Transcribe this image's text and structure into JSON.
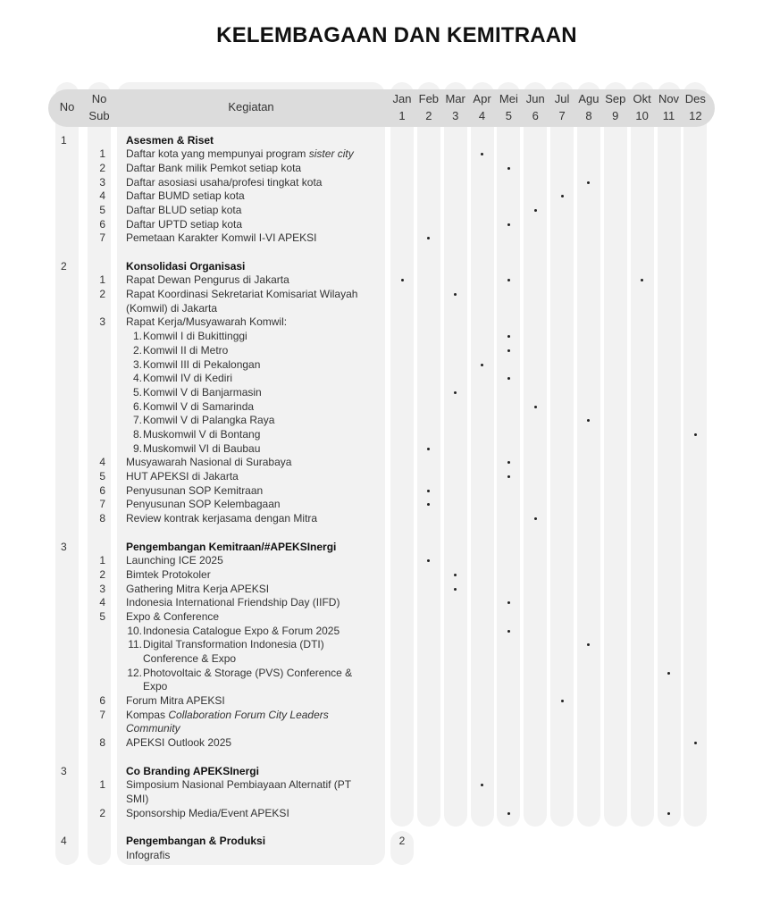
{
  "title": "KELEMBAGAAN DAN KEMITRAAN",
  "header": {
    "no": "No",
    "no_sub_1": "No",
    "no_sub_2": "Sub",
    "kegiatan": "Kegiatan",
    "months": [
      [
        "Jan",
        "1"
      ],
      [
        "Feb",
        "2"
      ],
      [
        "Mar",
        "3"
      ],
      [
        "Apr",
        "4"
      ],
      [
        "Mei",
        "5"
      ],
      [
        "Jun",
        "6"
      ],
      [
        "Jul",
        "7"
      ],
      [
        "Agu",
        "8"
      ],
      [
        "Sep",
        "9"
      ],
      [
        "Okt",
        "10"
      ],
      [
        "Nov",
        "11"
      ],
      [
        "Des",
        "12"
      ]
    ]
  },
  "rows": [
    {
      "no": "1",
      "parts": [
        {
          "t": "Asesmen & Riset"
        }
      ],
      "bold": true
    },
    {
      "sub": "1",
      "parts": [
        {
          "t": "Daftar kota yang mempunyai program "
        },
        {
          "t": "sister city",
          "i": true
        }
      ],
      "m": [
        4
      ]
    },
    {
      "sub": "2",
      "parts": [
        {
          "t": "Daftar Bank milik Pemkot setiap kota"
        }
      ],
      "m": [
        5
      ]
    },
    {
      "sub": "3",
      "parts": [
        {
          "t": "Daftar asosiasi usaha/profesi tingkat kota"
        }
      ],
      "m": [
        8
      ]
    },
    {
      "sub": "4",
      "parts": [
        {
          "t": "Daftar BUMD setiap kota"
        }
      ],
      "m": [
        7
      ]
    },
    {
      "sub": "5",
      "parts": [
        {
          "t": "Daftar BLUD setiap kota"
        }
      ],
      "m": [
        6
      ]
    },
    {
      "sub": "6",
      "parts": [
        {
          "t": "Daftar UPTD setiap kota"
        }
      ],
      "m": [
        5
      ]
    },
    {
      "sub": "7",
      "parts": [
        {
          "t": "Pemetaan Karakter Komwil I-VI APEKSI"
        }
      ],
      "m": [
        2
      ]
    },
    {},
    {
      "no": "2",
      "parts": [
        {
          "t": "Konsolidasi Organisasi"
        }
      ],
      "bold": true
    },
    {
      "sub": "1",
      "parts": [
        {
          "t": "Rapat Dewan Pengurus di Jakarta"
        }
      ],
      "m": [
        1,
        5,
        10
      ]
    },
    {
      "sub": "2",
      "parts": [
        {
          "t": "Rapat Koordinasi Sekretariat Komisariat Wilayah"
        }
      ],
      "m": [
        3
      ]
    },
    {
      "parts": [
        {
          "t": "(Komwil) di Jakarta"
        }
      ]
    },
    {
      "sub": "3",
      "parts": [
        {
          "t": "Rapat Kerja/Musyawarah Komwil:"
        }
      ]
    },
    {
      "num": "1.",
      "parts": [
        {
          "t": "Komwil I di Bukittinggi"
        }
      ],
      "m": [
        5
      ]
    },
    {
      "num": "2.",
      "parts": [
        {
          "t": "Komwil II di Metro"
        }
      ],
      "m": [
        5
      ]
    },
    {
      "num": "3.",
      "parts": [
        {
          "t": "Komwil III di Pekalongan"
        }
      ],
      "m": [
        4
      ]
    },
    {
      "num": "4.",
      "parts": [
        {
          "t": "Komwil IV di Kediri"
        }
      ],
      "m": [
        5
      ]
    },
    {
      "num": "5.",
      "parts": [
        {
          "t": "Komwil V di Banjarmasin"
        }
      ],
      "m": [
        3
      ]
    },
    {
      "num": "6.",
      "parts": [
        {
          "t": "Komwil V di Samarinda"
        }
      ],
      "m": [
        6
      ]
    },
    {
      "num": "7.",
      "parts": [
        {
          "t": "Komwil V di Palangka Raya"
        }
      ],
      "m": [
        8
      ]
    },
    {
      "num": "8.",
      "parts": [
        {
          "t": "Muskomwil V di Bontang"
        }
      ],
      "m": [
        12
      ]
    },
    {
      "num": "9.",
      "parts": [
        {
          "t": "Muskomwil VI di Baubau"
        }
      ],
      "m": [
        2
      ]
    },
    {
      "sub": "4",
      "parts": [
        {
          "t": "Musyawarah Nasional di Surabaya"
        }
      ],
      "m": [
        5
      ]
    },
    {
      "sub": "5",
      "parts": [
        {
          "t": "HUT APEKSI di Jakarta"
        }
      ],
      "m": [
        5
      ]
    },
    {
      "sub": "6",
      "parts": [
        {
          "t": "Penyusunan SOP Kemitraan"
        }
      ],
      "m": [
        2
      ]
    },
    {
      "sub": "7",
      "parts": [
        {
          "t": "Penyusunan SOP Kelembagaan"
        }
      ],
      "m": [
        2
      ]
    },
    {
      "sub": "8",
      "parts": [
        {
          "t": "Review kontrak kerjasama dengan Mitra"
        }
      ],
      "m": [
        6
      ]
    },
    {},
    {
      "no": "3",
      "parts": [
        {
          "t": "Pengembangan Kemitraan/#APEKSInergi"
        }
      ],
      "bold": true
    },
    {
      "sub": "1",
      "parts": [
        {
          "t": "Launching ICE 2025"
        }
      ],
      "m": [
        2
      ]
    },
    {
      "sub": "2",
      "parts": [
        {
          "t": "Bimtek Protokoler"
        }
      ],
      "m": [
        3
      ]
    },
    {
      "sub": "3",
      "parts": [
        {
          "t": "Gathering Mitra Kerja APEKSI"
        }
      ],
      "m": [
        3
      ]
    },
    {
      "sub": "4",
      "parts": [
        {
          "t": "Indonesia International Friendship Day (IIFD)"
        }
      ],
      "m": [
        5
      ]
    },
    {
      "sub": "5",
      "parts": [
        {
          "t": "Expo & Conference"
        }
      ]
    },
    {
      "num": "10.",
      "parts": [
        {
          "t": "Indonesia Catalogue Expo & Forum 2025"
        }
      ],
      "m": [
        5
      ]
    },
    {
      "num": "11.",
      "parts": [
        {
          "t": "Digital Transformation Indonesia (DTI)"
        }
      ],
      "m": [
        8
      ]
    },
    {
      "cont": true,
      "parts": [
        {
          "t": "Conference & Expo"
        }
      ]
    },
    {
      "num": "12.",
      "parts": [
        {
          "t": "Photovoltaic & Storage (PVS) Conference &"
        }
      ],
      "m": [
        11
      ]
    },
    {
      "cont": true,
      "parts": [
        {
          "t": "Expo"
        }
      ]
    },
    {
      "sub": "6",
      "parts": [
        {
          "t": "Forum Mitra APEKSI"
        }
      ],
      "m": [
        7
      ]
    },
    {
      "sub": "7",
      "parts": [
        {
          "t": "Kompas "
        },
        {
          "t": "Collaboration Forum City Leaders",
          "i": true
        }
      ]
    },
    {
      "parts": [
        {
          "t": "Community",
          "i": true
        }
      ]
    },
    {
      "sub": "8",
      "parts": [
        {
          "t": "APEKSI Outlook 2025"
        }
      ],
      "m": [
        12
      ]
    },
    {},
    {
      "no": "3",
      "parts": [
        {
          "t": "Co Branding APEKSInergi"
        }
      ],
      "bold": true
    },
    {
      "sub": "1",
      "parts": [
        {
          "t": "Simposium Nasional Pembiayaan Alternatif (PT"
        }
      ],
      "m": [
        4
      ]
    },
    {
      "parts": [
        {
          "t": "SMI)"
        }
      ]
    },
    {
      "sub": "2",
      "parts": [
        {
          "t": "Sponsorship Media/Event APEKSI"
        }
      ],
      "m": [
        5,
        11
      ]
    },
    {},
    {
      "no": "4",
      "parts": [
        {
          "t": "Pengembangan & Produksi"
        }
      ],
      "bold": true,
      "extra": "2"
    },
    {
      "parts": [
        {
          "t": "Infografis"
        }
      ]
    }
  ]
}
